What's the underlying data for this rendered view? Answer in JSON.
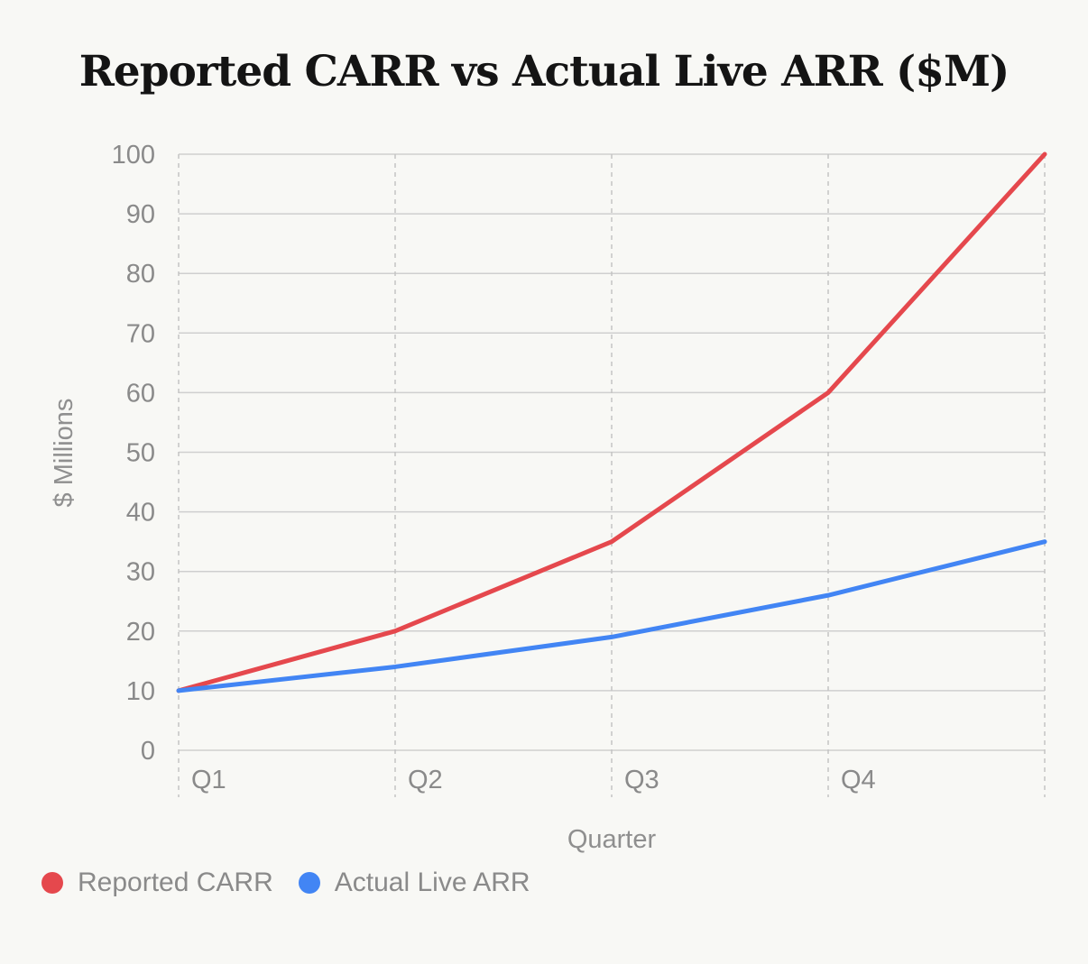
{
  "chart_data": {
    "type": "line",
    "title": "Reported CARR vs Actual Live ARR ($M)",
    "xlabel": "Quarter",
    "ylabel": "$ Millions",
    "categories": [
      "Q1",
      "Q2",
      "Q3",
      "Q4",
      ""
    ],
    "ylim": [
      0,
      100
    ],
    "yticks": [
      0,
      10,
      20,
      30,
      40,
      50,
      60,
      70,
      80,
      90,
      100
    ],
    "grid": true,
    "legend_position": "bottom-left",
    "series": [
      {
        "name": "Reported CARR",
        "color": "#e5484d",
        "values": [
          10,
          20,
          35,
          60,
          100
        ]
      },
      {
        "name": "Actual Live ARR",
        "color": "#4285f4",
        "values": [
          10,
          14,
          19,
          26,
          35
        ]
      }
    ]
  }
}
